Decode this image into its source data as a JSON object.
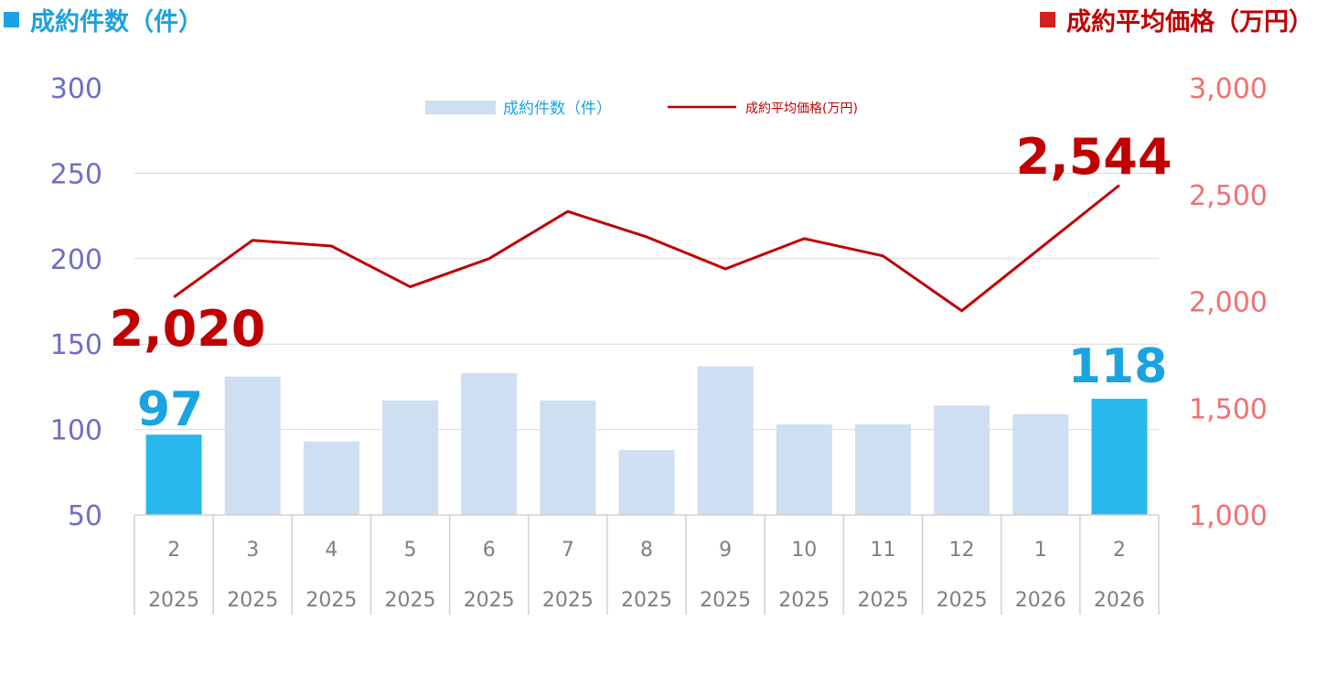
{
  "titles": {
    "left": "成約件数（件）",
    "right": "成約平均価格（万円）"
  },
  "colors": {
    "left_title": "#1aa3e0",
    "right_title": "#c00000",
    "bar_default": "#cfdff2",
    "bar_highlight": "#29b8ee",
    "line": "#c00000",
    "left_axis_text": "#6e6ec8",
    "right_axis_text": "#f07070",
    "category_text": "#7f7f7f",
    "grid": "#d9d9d9"
  },
  "chart_data": {
    "type": "bar+line",
    "categories": [
      {
        "month": "2",
        "year": "2025"
      },
      {
        "month": "3",
        "year": "2025"
      },
      {
        "month": "4",
        "year": "2025"
      },
      {
        "month": "5",
        "year": "2025"
      },
      {
        "month": "6",
        "year": "2025"
      },
      {
        "month": "7",
        "year": "2025"
      },
      {
        "month": "8",
        "year": "2025"
      },
      {
        "month": "9",
        "year": "2025"
      },
      {
        "month": "10",
        "year": "2025"
      },
      {
        "month": "11",
        "year": "2025"
      },
      {
        "month": "12",
        "year": "2025"
      },
      {
        "month": "1",
        "year": "2026"
      },
      {
        "month": "2",
        "year": "2026"
      }
    ],
    "series": [
      {
        "name": "成約件数（件）",
        "type": "bar",
        "axis": "left",
        "values": [
          97,
          131,
          93,
          117,
          133,
          117,
          88,
          137,
          103,
          103,
          114,
          109,
          118
        ],
        "highlight": [
          0,
          12
        ]
      },
      {
        "name": "成約平均価格(万円)",
        "type": "line",
        "axis": "right",
        "values": [
          2020,
          2286,
          2259,
          2068,
          2200,
          2421,
          2302,
          2152,
          2294,
          2213,
          1956,
          2250,
          2544
        ]
      }
    ],
    "left_axis": {
      "min": 50,
      "max": 300,
      "ticks": [
        "300",
        "250",
        "200",
        "150",
        "100",
        "50"
      ]
    },
    "right_axis": {
      "min": 1000,
      "max": 3000,
      "ticks": [
        "3,000",
        "2,500",
        "2,000",
        "1,500",
        "1,000"
      ]
    },
    "annotations": {
      "bar_first": "97",
      "bar_last": "118",
      "line_first": "2,020",
      "line_last": "2,544"
    },
    "legend": {
      "placement": "top-center"
    },
    "grid": true
  }
}
